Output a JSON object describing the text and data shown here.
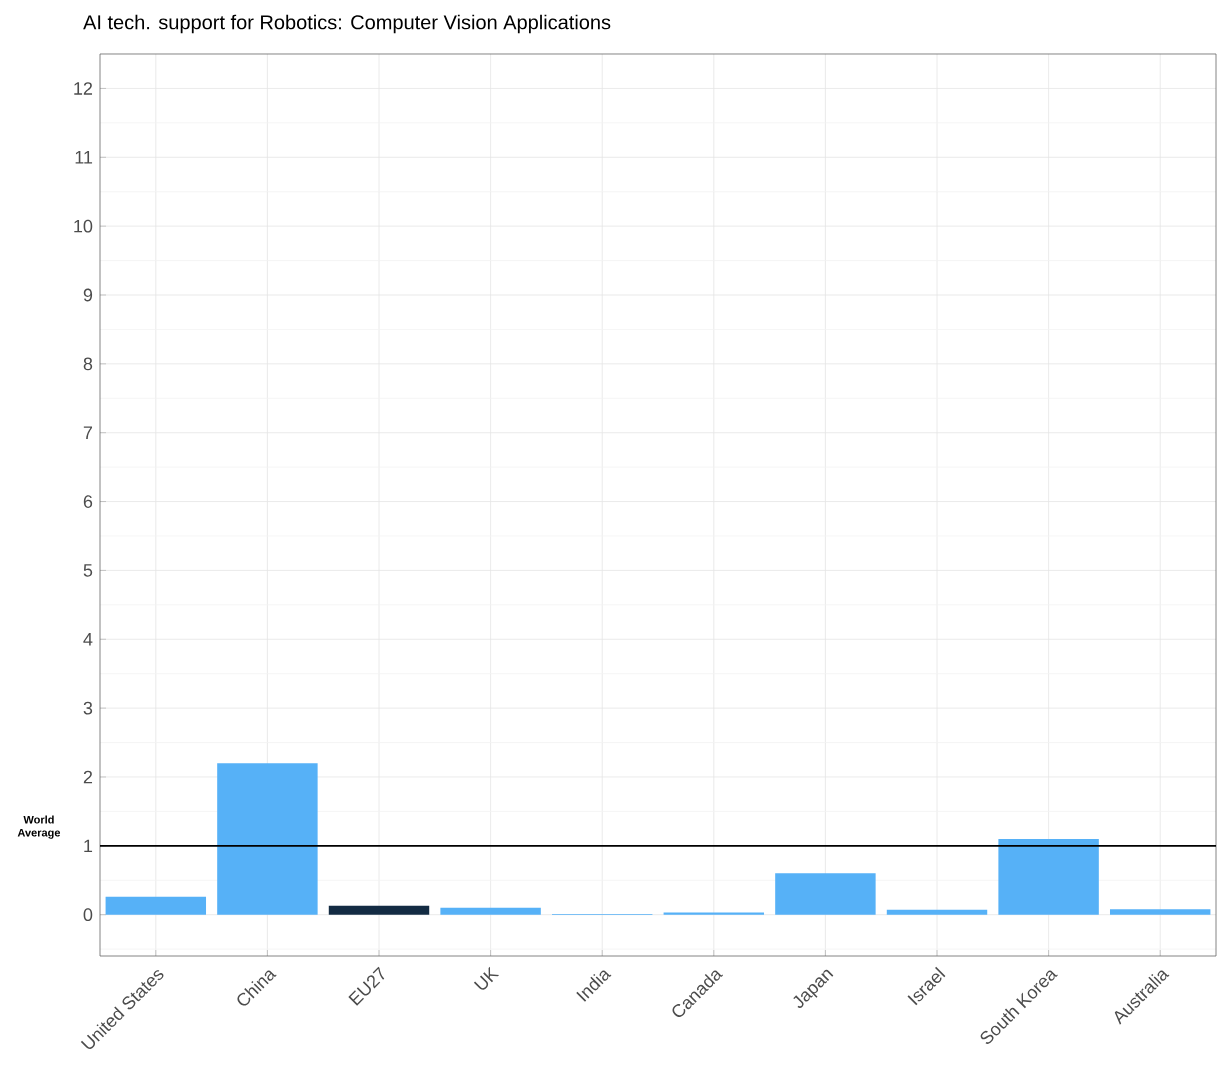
{
  "chart_data": {
    "type": "bar",
    "title": "AI tech. support for Robotics: Computer Vision Applications",
    "categories": [
      "United States",
      "China",
      "EU27",
      "UK",
      "India",
      "Canada",
      "Japan",
      "Israel",
      "South Korea",
      "Australia"
    ],
    "values": [
      0.26,
      2.2,
      0.13,
      0.1,
      0.01,
      0.03,
      0.6,
      0.07,
      1.1,
      0.08
    ],
    "colors": [
      "#56b1f7",
      "#56b1f7",
      "#132b43",
      "#56b1f7",
      "#56b1f7",
      "#56b1f7",
      "#56b1f7",
      "#56b1f7",
      "#56b1f7",
      "#56b1f7"
    ],
    "ylim": [
      -0.6,
      12.5
    ],
    "yticks": [
      0,
      1,
      2,
      3,
      4,
      5,
      6,
      7,
      8,
      9,
      10,
      11,
      12
    ],
    "grid": true,
    "ref_lines": [
      {
        "axis": "y",
        "value": 1,
        "label": "World Average",
        "color": "#000000"
      }
    ]
  }
}
